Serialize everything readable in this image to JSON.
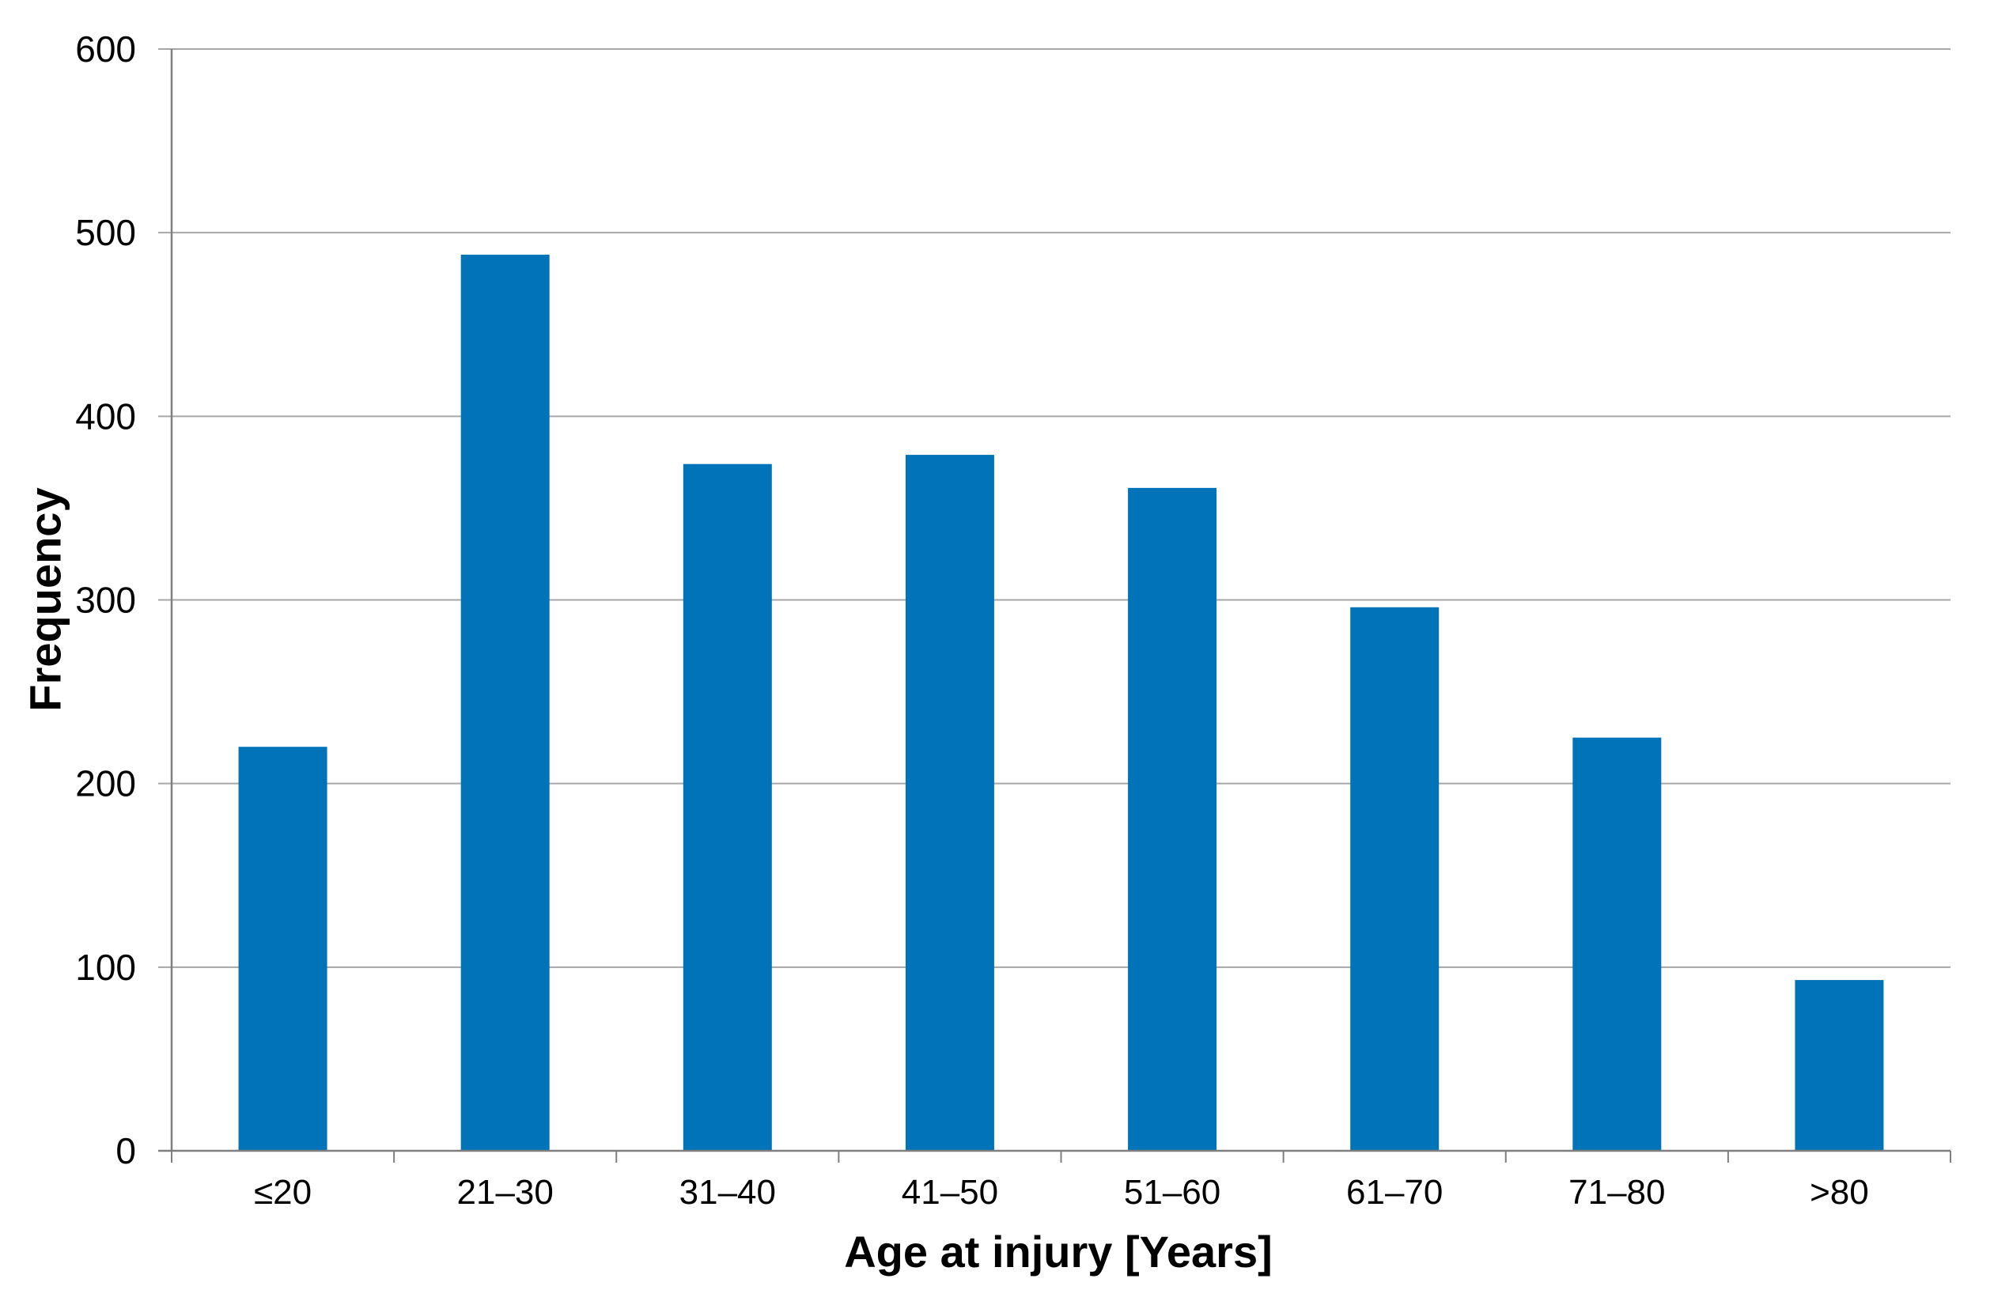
{
  "chart_data": {
    "type": "bar",
    "title": "",
    "categories": [
      "≤20",
      "21–30",
      "31–40",
      "41–50",
      "51–60",
      "61–70",
      "71–80",
      ">80"
    ],
    "values": [
      220,
      488,
      374,
      379,
      361,
      296,
      225,
      93
    ],
    "xlabel": "Age at injury [Years]",
    "ylabel": "Frequency",
    "ylim": [
      0,
      600
    ],
    "yticks": [
      0,
      100,
      200,
      300,
      400,
      500,
      600
    ],
    "grid": true,
    "legend": "none",
    "bar_gap_ratio": 0.4
  },
  "style": {
    "bar_color": "#0173b9",
    "gridline_color": "#a6a6a6",
    "axis_color": "#7f7f7f",
    "text_color": "#000000",
    "background_color": "#ffffff"
  }
}
